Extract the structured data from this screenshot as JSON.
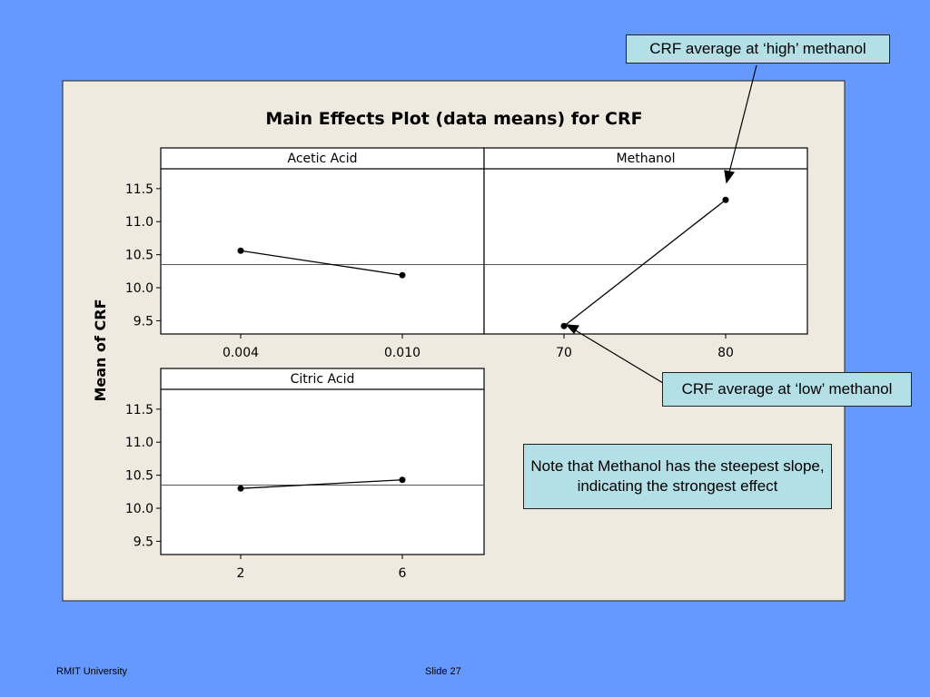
{
  "chart_data": {
    "type": "line",
    "title": "Main Effects Plot (data means) for CRF",
    "ylabel": "Mean of CRF",
    "ylim": [
      9.3,
      11.8
    ],
    "yticks": [
      9.5,
      10.0,
      10.5,
      11.0,
      11.5
    ],
    "ytick_labels": [
      "9.5",
      "10.0",
      "10.5",
      "11.0",
      "11.5"
    ],
    "grand_mean": 10.35,
    "panels": [
      {
        "name": "Acetic Acid",
        "categories": [
          "0.004",
          "0.010"
        ],
        "values": [
          10.56,
          10.19
        ]
      },
      {
        "name": "Methanol",
        "categories": [
          "70",
          "80"
        ],
        "values": [
          9.42,
          11.33
        ]
      },
      {
        "name": "Citric Acid",
        "categories": [
          "2",
          "6"
        ],
        "values": [
          10.3,
          10.43
        ]
      }
    ]
  },
  "callouts": {
    "high": "CRF average at ‘high’ methanol",
    "low": "CRF average at ‘low’ methanol",
    "note": "Note that Methanol has the steepest slope, indicating the strongest effect"
  },
  "footer": {
    "left": "RMIT University",
    "center": "Slide 27"
  },
  "colors": {
    "slide_background": "#6699ff",
    "chart_panel": "#eeeae0",
    "callout_fill": "#b3dfe6"
  }
}
